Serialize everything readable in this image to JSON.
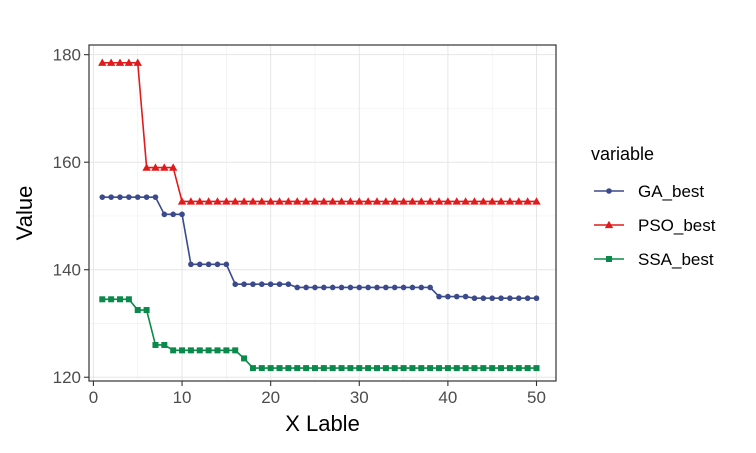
{
  "chart_data": {
    "type": "line",
    "xlabel": "X Lable",
    "ylabel": "Value",
    "xlim": [
      -0.5,
      52.2
    ],
    "ylim": [
      119.3,
      181.8
    ],
    "x_ticks": [
      0,
      10,
      20,
      30,
      40,
      50
    ],
    "y_ticks": [
      120,
      140,
      160,
      180
    ],
    "grid": true,
    "legend": {
      "title": "variable",
      "position": "right"
    },
    "x": [
      1,
      2,
      3,
      4,
      5,
      6,
      7,
      8,
      9,
      10,
      11,
      12,
      13,
      14,
      15,
      16,
      17,
      18,
      19,
      20,
      21,
      22,
      23,
      24,
      25,
      26,
      27,
      28,
      29,
      30,
      31,
      32,
      33,
      34,
      35,
      36,
      37,
      38,
      39,
      40,
      41,
      42,
      43,
      44,
      45,
      46,
      47,
      48,
      49,
      50
    ],
    "series": [
      {
        "name": "GA_best",
        "color": "#3b4a8c",
        "marker": "circle",
        "values": [
          153.5,
          153.5,
          153.5,
          153.5,
          153.5,
          153.5,
          153.5,
          150.3,
          150.3,
          150.3,
          141,
          141,
          141,
          141,
          141,
          137.3,
          137.3,
          137.3,
          137.3,
          137.3,
          137.3,
          137.3,
          136.7,
          136.7,
          136.7,
          136.7,
          136.7,
          136.7,
          136.7,
          136.7,
          136.7,
          136.7,
          136.7,
          136.7,
          136.7,
          136.7,
          136.7,
          136.7,
          135,
          135,
          135,
          135,
          134.7,
          134.7,
          134.7,
          134.7,
          134.7,
          134.7,
          134.7,
          134.7
        ]
      },
      {
        "name": "PSO_best",
        "color": "#e31a1c",
        "marker": "triangle",
        "values": [
          178.5,
          178.5,
          178.5,
          178.5,
          178.5,
          159,
          159,
          159,
          159,
          152.7,
          152.7,
          152.7,
          152.7,
          152.7,
          152.7,
          152.7,
          152.7,
          152.7,
          152.7,
          152.7,
          152.7,
          152.7,
          152.7,
          152.7,
          152.7,
          152.7,
          152.7,
          152.7,
          152.7,
          152.7,
          152.7,
          152.7,
          152.7,
          152.7,
          152.7,
          152.7,
          152.7,
          152.7,
          152.7,
          152.7,
          152.7,
          152.7,
          152.7,
          152.7,
          152.7,
          152.7,
          152.7,
          152.7,
          152.7,
          152.7
        ]
      },
      {
        "name": "SSA_best",
        "color": "#0a8a4a",
        "marker": "square",
        "values": [
          134.5,
          134.5,
          134.5,
          134.5,
          132.5,
          132.5,
          126,
          126,
          125,
          125,
          125,
          125,
          125,
          125,
          125,
          125,
          123.5,
          121.7,
          121.7,
          121.7,
          121.7,
          121.7,
          121.7,
          121.7,
          121.7,
          121.7,
          121.7,
          121.7,
          121.7,
          121.7,
          121.7,
          121.7,
          121.7,
          121.7,
          121.7,
          121.7,
          121.7,
          121.7,
          121.7,
          121.7,
          121.7,
          121.7,
          121.7,
          121.7,
          121.7,
          121.7,
          121.7,
          121.7,
          121.7,
          121.7
        ]
      }
    ]
  }
}
